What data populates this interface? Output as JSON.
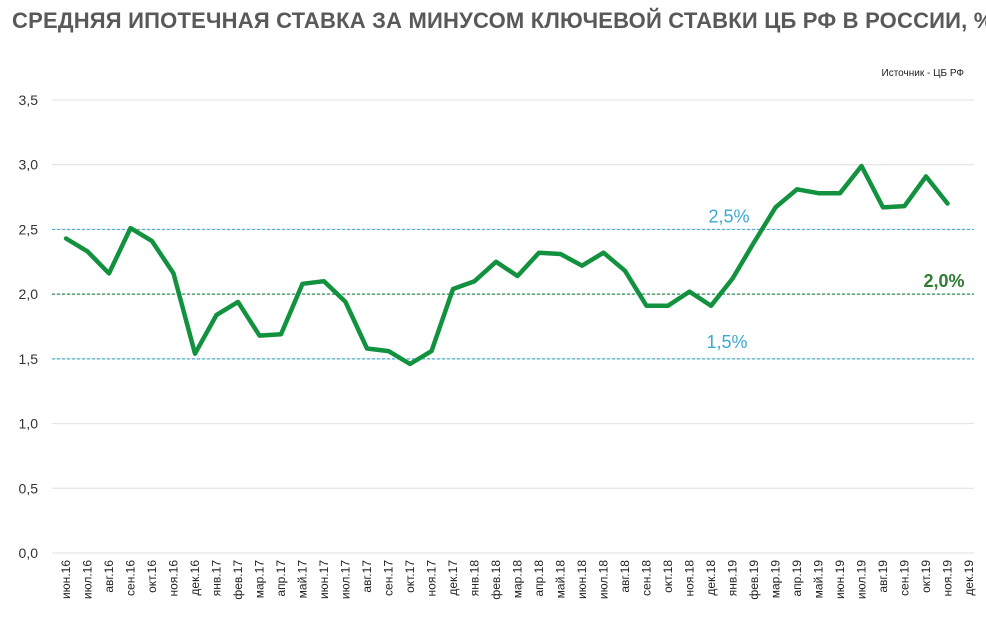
{
  "title": "СРЕДНЯЯ ИПОТЕЧНАЯ СТАВКА ЗА МИНУСОМ КЛЮЧЕВОЙ СТАВКИ ЦБ РФ В РОССИИ, %",
  "source": "Источник  - ЦБ РФ",
  "colors": {
    "line": "#12923f",
    "grid": "#e0e0e0",
    "ref_blue": "#4aafd1",
    "ref_green": "#2e8b57",
    "ann_blue": "#3aa9d3",
    "ann_green": "#2e7d32"
  },
  "chart_data": {
    "type": "line",
    "title": "СРЕДНЯЯ ИПОТЕЧНАЯ СТАВКА ЗА МИНУСОМ КЛЮЧЕВОЙ СТАВКИ ЦБ РФ В РОССИИ, %",
    "ylim": [
      0,
      3.5
    ],
    "yticks": [
      "0,0",
      "0,5",
      "1,0",
      "1,5",
      "2,0",
      "2,5",
      "3,0",
      "3,5"
    ],
    "grid": true,
    "categories": [
      "июн.16",
      "июл.16",
      "авг.16",
      "сен.16",
      "окт.16",
      "ноя.16",
      "дек.16",
      "янв.17",
      "фев.17",
      "мар.17",
      "апр.17",
      "май.17",
      "июн.17",
      "июл.17",
      "авг.17",
      "сен.17",
      "окт.17",
      "ноя.17",
      "дек.17",
      "янв.18",
      "фев.18",
      "мар.18",
      "апр.18",
      "май.18",
      "июн.18",
      "июл.18",
      "авг.18",
      "сен.18",
      "окт.18",
      "ноя.18",
      "дек.18",
      "янв.19",
      "фев.19",
      "мар.19",
      "апр.19",
      "май.19",
      "июн.19",
      "июл.19",
      "авг.19",
      "сен.19",
      "окт.19",
      "ноя.19",
      "дек.19"
    ],
    "values": [
      2.43,
      2.33,
      2.16,
      2.51,
      2.41,
      2.16,
      1.54,
      1.84,
      1.94,
      1.68,
      1.69,
      2.08,
      2.1,
      1.94,
      1.58,
      1.56,
      1.46,
      1.56,
      2.04,
      2.1,
      2.25,
      2.14,
      2.32,
      2.31,
      2.22,
      2.32,
      2.18,
      1.91,
      1.91,
      2.02,
      1.91,
      2.12,
      2.4,
      2.67,
      2.81,
      2.78,
      2.78,
      2.99,
      2.67,
      2.68,
      2.91,
      2.7,
      null
    ],
    "reference_lines": [
      {
        "value": 2.5,
        "label": "2,5%",
        "style": "dashed",
        "color": "#4aafd1"
      },
      {
        "value": 2.0,
        "label": "2,0%",
        "style": "dashed",
        "color": "#2e8b57"
      },
      {
        "value": 1.5,
        "label": "1,5%",
        "style": "dashed",
        "color": "#4aafd1"
      }
    ]
  }
}
